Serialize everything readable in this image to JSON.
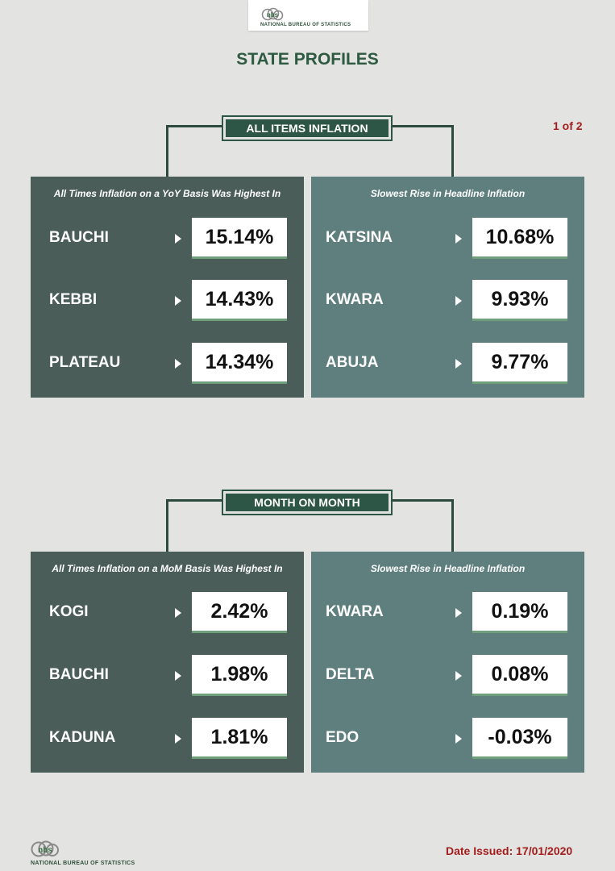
{
  "header": {
    "logo_mark": "nbs",
    "logo_text": "NATIONAL BUREAU OF STATISTICS",
    "title": "STATE PROFILES",
    "page_count": "1 of 2"
  },
  "sections": [
    {
      "label": "ALL ITEMS INFLATION",
      "left_panel": {
        "heading": "All Times Inflation on a YoY Basis Was Highest In",
        "rows": [
          {
            "state": "BAUCHI",
            "value": "15.14%"
          },
          {
            "state": "KEBBI",
            "value": "14.43%"
          },
          {
            "state": "PLATEAU",
            "value": "14.34%"
          }
        ]
      },
      "right_panel": {
        "heading": "Slowest Rise in Headline Inflation",
        "rows": [
          {
            "state": "KATSINA",
            "value": "10.68%"
          },
          {
            "state": "KWARA",
            "value": "9.93%"
          },
          {
            "state": "ABUJA",
            "value": "9.77%"
          }
        ]
      }
    },
    {
      "label": "MONTH ON MONTH",
      "left_panel": {
        "heading": "All Times Inflation on a MoM Basis Was Highest In",
        "rows": [
          {
            "state": "KOGI",
            "value": "2.42%"
          },
          {
            "state": "BAUCHI",
            "value": "1.98%"
          },
          {
            "state": "KADUNA",
            "value": "1.81%"
          }
        ]
      },
      "right_panel": {
        "heading": "Slowest Rise in Headline Inflation",
        "rows": [
          {
            "state": "KWARA",
            "value": "0.19%"
          },
          {
            "state": "DELTA",
            "value": "0.08%"
          },
          {
            "state": "EDO",
            "value": "-0.03%"
          }
        ]
      }
    }
  ],
  "footer": {
    "logo_mark": "nbs",
    "logo_text": "NATIONAL BUREAU OF STATISTICS",
    "date_issued": "Date Issued: 17/01/2020"
  },
  "colors": {
    "dark_panel": "#4a5d59",
    "light_panel": "#5f7f7e",
    "label_green": "#2e5646",
    "title_green": "#2d5a40",
    "accent_red": "#a31d1d",
    "value_underline": "#6fa07b"
  }
}
